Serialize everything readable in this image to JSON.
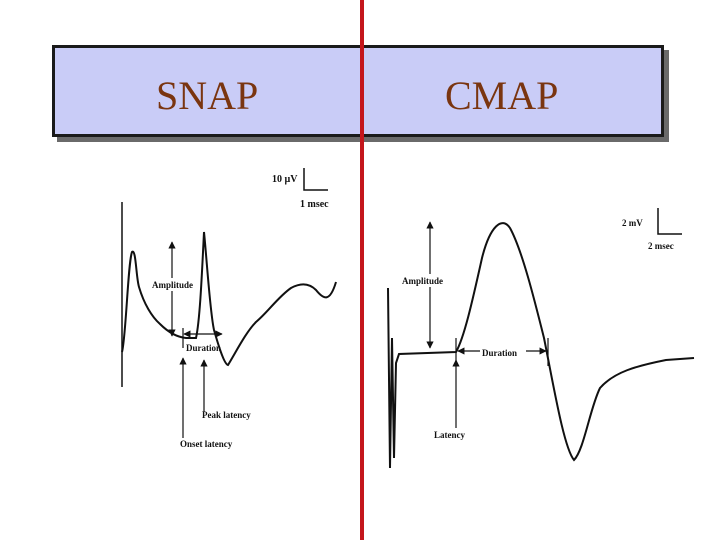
{
  "header": {
    "left_title": "SNAP",
    "right_title": "CMAP"
  },
  "snap": {
    "scale_amplitude": "10 µV",
    "scale_time": "1 msec",
    "label_amplitude": "Amplitude",
    "label_duration": "Duration",
    "label_peak_latency": "Peak latency",
    "label_onset_latency": "Onset latency"
  },
  "cmap": {
    "scale_amplitude": "2 mV",
    "scale_time": "2 msec",
    "label_amplitude": "Amplitude",
    "label_duration": "Duration",
    "label_latency": "Latency"
  },
  "colors": {
    "header_fill": "#c9ccf7",
    "header_text": "#7a3510",
    "divider": "#c4161c"
  }
}
